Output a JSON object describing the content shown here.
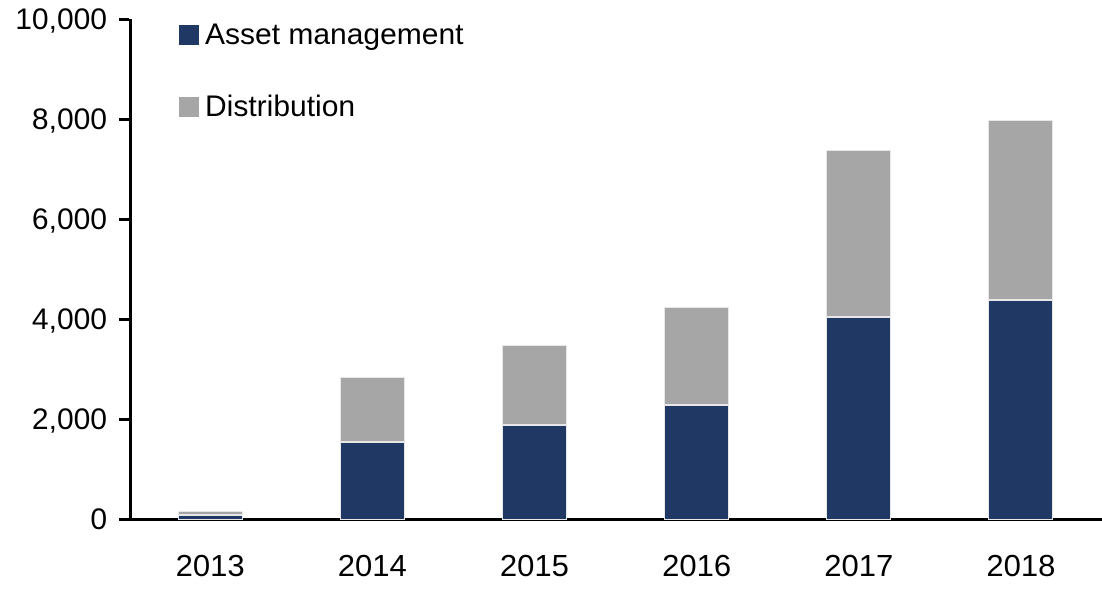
{
  "chart_data": {
    "type": "bar",
    "subtype": "stacked",
    "title": "",
    "xlabel": "",
    "ylabel": "",
    "categories": [
      "2013",
      "2014",
      "2015",
      "2016",
      "2017",
      "2018"
    ],
    "series": [
      {
        "name": "Asset management",
        "color": "#1F3864",
        "values": [
          100,
          1550,
          1900,
          2300,
          4050,
          4400
        ]
      },
      {
        "name": "Distribution",
        "color": "#A6A6A6",
        "values": [
          80,
          1300,
          1600,
          1950,
          3350,
          3600
        ]
      }
    ],
    "ylim": [
      0,
      10000
    ],
    "ytick_interval": 2000,
    "ytick_labels": [
      "0",
      "2,000",
      "4,000",
      "6,000",
      "8,000",
      "10,000"
    ],
    "grid": false,
    "legend_position": "top-left",
    "axis_color": "#000000",
    "background_color": "#FFFFFF"
  }
}
